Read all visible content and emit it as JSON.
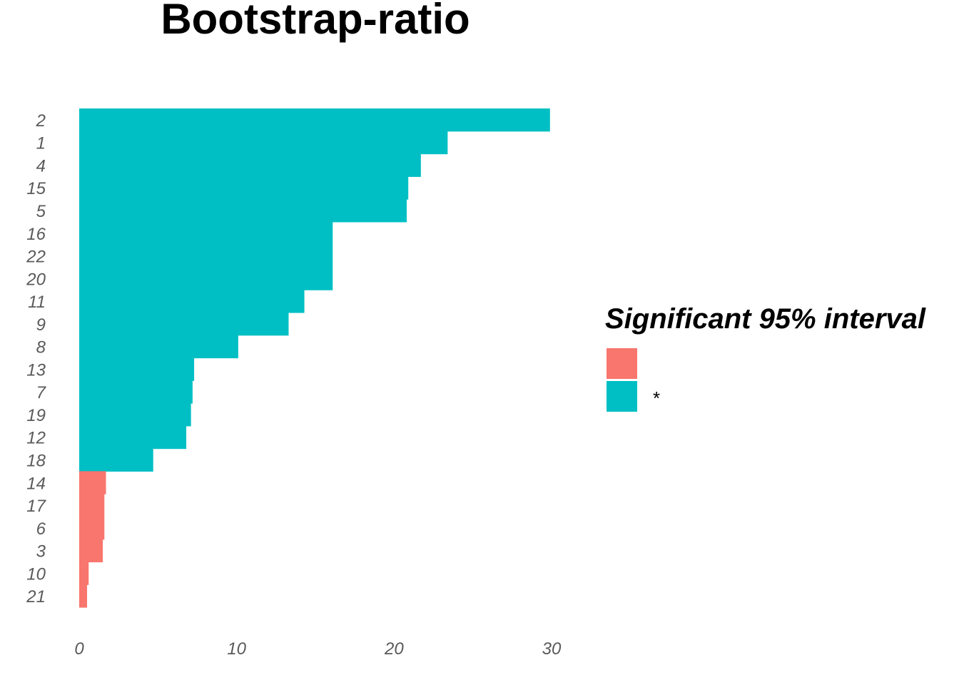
{
  "chart_data": {
    "type": "bar",
    "orientation": "horizontal",
    "title": "Bootstrap-ratio",
    "xlabel": "",
    "ylabel": "",
    "xlim": [
      0,
      30
    ],
    "x_ticks": [
      0,
      10,
      20,
      30
    ],
    "grid": false,
    "categories": [
      "2",
      "1",
      "4",
      "15",
      "5",
      "16",
      "22",
      "20",
      "11",
      "9",
      "8",
      "13",
      "7",
      "19",
      "12",
      "18",
      "14",
      "17",
      "6",
      "3",
      "10",
      "21"
    ],
    "values": [
      29.9,
      23.4,
      21.7,
      20.9,
      20.8,
      16.1,
      16.1,
      16.1,
      14.3,
      13.3,
      10.1,
      7.3,
      7.2,
      7.1,
      6.8,
      4.7,
      1.7,
      1.6,
      1.6,
      1.5,
      0.6,
      0.5
    ],
    "significant": [
      "*",
      "*",
      "*",
      "*",
      "*",
      "*",
      "*",
      "*",
      "*",
      "*",
      "*",
      "*",
      "*",
      "*",
      "*",
      "*",
      "",
      "",
      "",
      "",
      "",
      ""
    ],
    "legend": {
      "title": "Significant 95% interval",
      "placement": "right",
      "entries": [
        {
          "key": "",
          "label": "",
          "color": "#F8766D"
        },
        {
          "key": "*",
          "label": "*",
          "color": "#00BFC4"
        }
      ]
    }
  }
}
